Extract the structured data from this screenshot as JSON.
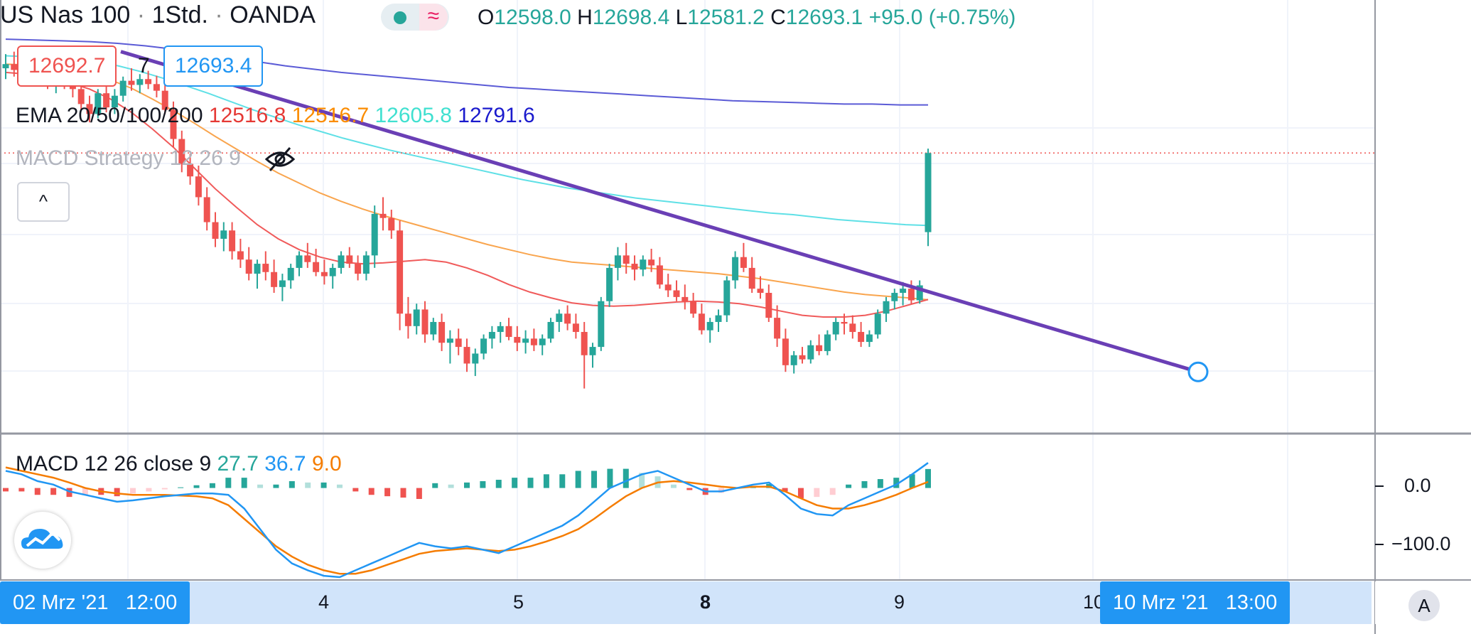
{
  "header": {
    "symbol": "US Nas 100",
    "sep1": "·",
    "interval": "1Std.",
    "sep2": "·",
    "broker": "OANDA",
    "wave_glyph": "≈",
    "ohlc": {
      "o_label": "O",
      "o": "12598.0",
      "h_label": "H",
      "h": "12698.4",
      "l_label": "L",
      "l": "12581.2",
      "c_label": "C",
      "c": "12693.1",
      "change": "+95.0 (+0.75%)"
    }
  },
  "quote": {
    "bid": "12692.7",
    "spread": "7",
    "ask": "12693.4"
  },
  "indicators": {
    "ema_label": "EMA 20/50/100/200",
    "ema20": "12516.8",
    "ema50": "12516.7",
    "ema100": "12605.8",
    "ema200": "12791.6",
    "macd_strategy_label": "MACD Strategy 12 26 9",
    "collapse_glyph": "^"
  },
  "macd_legend": {
    "label": "MACD 12 26 close 9",
    "hist": "27.7",
    "macd": "36.7",
    "signal": "9.0"
  },
  "time_axis": {
    "left_tag": "02 Mrz '21   12:00",
    "right_tag": "10 Mrz '21   13:00",
    "labels": [
      "4",
      "5",
      "8",
      "9",
      "10"
    ]
  },
  "macd_axis": {
    "labels": [
      "0.0",
      "−100.0"
    ]
  },
  "auto_button": "A",
  "colors": {
    "up": "#26a69a",
    "down": "#ef5350",
    "ema20": "#f05a5a",
    "ema50": "#f9a54e",
    "ema100": "#5fe0e6",
    "ema200": "#5b5bd6",
    "trendline": "#6a3fb5",
    "macd_line": "#2196f3",
    "signal_line": "#f57c00"
  },
  "chart_data": {
    "type": "candlestick",
    "symbol": "US Nas 100",
    "interval": "1h",
    "ohlc_last": {
      "open": 12598.0,
      "high": 12698.4,
      "low": 12581.2,
      "close": 12693.1
    },
    "price_range": [
      12390,
      12860
    ],
    "candles": [
      [
        12795,
        12812,
        12782,
        12800
      ],
      [
        12800,
        12815,
        12785,
        12793
      ],
      [
        12793,
        12808,
        12780,
        12802
      ],
      [
        12802,
        12820,
        12790,
        12809
      ],
      [
        12809,
        12818,
        12788,
        12795
      ],
      [
        12795,
        12805,
        12770,
        12778
      ],
      [
        12778,
        12796,
        12765,
        12788
      ],
      [
        12788,
        12800,
        12770,
        12780
      ],
      [
        12780,
        12790,
        12760,
        12770
      ],
      [
        12770,
        12782,
        12745,
        12752
      ],
      [
        12752,
        12762,
        12730,
        12740
      ],
      [
        12740,
        12770,
        12735,
        12765
      ],
      [
        12765,
        12775,
        12742,
        12748
      ],
      [
        12748,
        12770,
        12740,
        12762
      ],
      [
        12762,
        12785,
        12755,
        12780
      ],
      [
        12780,
        12795,
        12768,
        12775
      ],
      [
        12775,
        12788,
        12765,
        12782
      ],
      [
        12782,
        12792,
        12770,
        12776
      ],
      [
        12776,
        12786,
        12760,
        12768
      ],
      [
        12768,
        12780,
        12740,
        12745
      ],
      [
        12745,
        12755,
        12700,
        12710
      ],
      [
        12710,
        12720,
        12670,
        12680
      ],
      [
        12680,
        12692,
        12655,
        12665
      ],
      [
        12665,
        12678,
        12630,
        12640
      ],
      [
        12640,
        12652,
        12600,
        12610
      ],
      [
        12610,
        12622,
        12580,
        12590
      ],
      [
        12590,
        12610,
        12575,
        12600
      ],
      [
        12600,
        12610,
        12565,
        12575
      ],
      [
        12575,
        12590,
        12555,
        12565
      ],
      [
        12565,
        12580,
        12540,
        12548
      ],
      [
        12548,
        12565,
        12530,
        12560
      ],
      [
        12560,
        12575,
        12540,
        12550
      ],
      [
        12550,
        12565,
        12525,
        12532
      ],
      [
        12532,
        12548,
        12515,
        12540
      ],
      [
        12540,
        12560,
        12530,
        12555
      ],
      [
        12555,
        12575,
        12545,
        12570
      ],
      [
        12570,
        12585,
        12555,
        12562
      ],
      [
        12562,
        12578,
        12545,
        12550
      ],
      [
        12550,
        12565,
        12535,
        12545
      ],
      [
        12545,
        12560,
        12530,
        12555
      ],
      [
        12555,
        12575,
        12548,
        12570
      ],
      [
        12570,
        12580,
        12555,
        12560
      ],
      [
        12560,
        12570,
        12540,
        12548
      ],
      [
        12548,
        12575,
        12540,
        12570
      ],
      [
        12570,
        12630,
        12555,
        12620
      ],
      [
        12620,
        12640,
        12600,
        12615
      ],
      [
        12615,
        12625,
        12590,
        12600
      ],
      [
        12600,
        12612,
        12480,
        12500
      ],
      [
        12500,
        12520,
        12470,
        12485
      ],
      [
        12485,
        12512,
        12475,
        12505
      ],
      [
        12505,
        12515,
        12465,
        12475
      ],
      [
        12475,
        12495,
        12468,
        12490
      ],
      [
        12490,
        12500,
        12455,
        12465
      ],
      [
        12465,
        12480,
        12440,
        12470
      ],
      [
        12470,
        12482,
        12450,
        12460
      ],
      [
        12460,
        12470,
        12430,
        12440
      ],
      [
        12440,
        12458,
        12425,
        12452
      ],
      [
        12452,
        12475,
        12445,
        12470
      ],
      [
        12470,
        12485,
        12458,
        12478
      ],
      [
        12478,
        12490,
        12465,
        12485
      ],
      [
        12485,
        12495,
        12468,
        12472
      ],
      [
        12472,
        12485,
        12455,
        12465
      ],
      [
        12465,
        12480,
        12452,
        12470
      ],
      [
        12470,
        12482,
        12455,
        12462
      ],
      [
        12462,
        12475,
        12450,
        12470
      ],
      [
        12470,
        12495,
        12465,
        12490
      ],
      [
        12490,
        12505,
        12478,
        12500
      ],
      [
        12500,
        12510,
        12480,
        12488
      ],
      [
        12488,
        12500,
        12470,
        12478
      ],
      [
        12478,
        12490,
        12410,
        12450
      ],
      [
        12450,
        12465,
        12435,
        12460
      ],
      [
        12460,
        12520,
        12455,
        12515
      ],
      [
        12515,
        12560,
        12508,
        12555
      ],
      [
        12555,
        12580,
        12540,
        12570
      ],
      [
        12570,
        12585,
        12548,
        12560
      ],
      [
        12560,
        12570,
        12540,
        12553
      ],
      [
        12553,
        12570,
        12545,
        12565
      ],
      [
        12565,
        12578,
        12550,
        12558
      ],
      [
        12558,
        12568,
        12530,
        12535
      ],
      [
        12535,
        12548,
        12520,
        12528
      ],
      [
        12528,
        12540,
        12515,
        12520
      ],
      [
        12520,
        12535,
        12505,
        12515
      ],
      [
        12515,
        12525,
        12495,
        12500
      ],
      [
        12500,
        12512,
        12475,
        12480
      ],
      [
        12480,
        12495,
        12465,
        12490
      ],
      [
        12490,
        12505,
        12478,
        12498
      ],
      [
        12498,
        12545,
        12490,
        12540
      ],
      [
        12540,
        12575,
        12530,
        12568
      ],
      [
        12568,
        12585,
        12550,
        12555
      ],
      [
        12555,
        12568,
        12525,
        12530
      ],
      [
        12530,
        12545,
        12518,
        12525
      ],
      [
        12525,
        12535,
        12490,
        12495
      ],
      [
        12495,
        12510,
        12460,
        12470
      ],
      [
        12470,
        12482,
        12430,
        12438
      ],
      [
        12438,
        12455,
        12428,
        12450
      ],
      [
        12450,
        12460,
        12440,
        12445
      ],
      [
        12445,
        12468,
        12440,
        12462
      ],
      [
        12462,
        12475,
        12450,
        12455
      ],
      [
        12455,
        12480,
        12450,
        12475
      ],
      [
        12475,
        12495,
        12468,
        12490
      ],
      [
        12490,
        12500,
        12475,
        12488
      ],
      [
        12488,
        12498,
        12470,
        12478
      ],
      [
        12478,
        12490,
        12460,
        12466
      ],
      [
        12466,
        12480,
        12460,
        12475
      ],
      [
        12475,
        12505,
        12470,
        12500
      ],
      [
        12500,
        12520,
        12490,
        12515
      ],
      [
        12515,
        12530,
        12505,
        12525
      ],
      [
        12525,
        12538,
        12510,
        12530
      ],
      [
        12530,
        12540,
        12512,
        12516
      ],
      [
        12516,
        12540,
        12512,
        12534
      ],
      [
        12598,
        12698.4,
        12581.2,
        12693.1
      ]
    ],
    "ema20": [
      12790,
      12788,
      12784,
      12778,
      12770,
      12758,
      12742,
      12722,
      12700,
      12675,
      12650,
      12628,
      12607,
      12590,
      12577,
      12568,
      12562,
      12560,
      12561,
      12563,
      12565,
      12562,
      12555,
      12546,
      12535,
      12526,
      12519,
      12513,
      12510,
      12509,
      12510,
      12512,
      12514,
      12515,
      12514,
      12512,
      12508,
      12503,
      12498,
      12496,
      12496,
      12498,
      12503,
      12510,
      12517
    ],
    "ema50": [
      12800,
      12799,
      12797,
      12794,
      12789,
      12781,
      12771,
      12758,
      12744,
      12729,
      12713,
      12698,
      12683,
      12669,
      12657,
      12645,
      12635,
      12626,
      12618,
      12611,
      12604,
      12597,
      12590,
      12583,
      12577,
      12571,
      12566,
      12562,
      12560,
      12558,
      12556,
      12554,
      12552,
      12550,
      12548,
      12545,
      12542,
      12538,
      12534,
      12530,
      12526,
      12523,
      12521,
      12519,
      12516.7
    ],
    "ema100": [
      12810,
      12809,
      12808,
      12806,
      12803,
      12798,
      12791,
      12783,
      12774,
      12765,
      12755,
      12745,
      12736,
      12727,
      12719,
      12711,
      12704,
      12697,
      12691,
      12685,
      12679,
      12673,
      12667,
      12661,
      12656,
      12651,
      12647,
      12643,
      12639,
      12636,
      12633,
      12630,
      12627,
      12624,
      12621,
      12619,
      12616,
      12613,
      12611,
      12609,
      12607,
      12606,
      12605.8
    ],
    "ema200": [
      12830,
      12829,
      12828,
      12827,
      12825,
      12822,
      12818,
      12813,
      12808,
      12803,
      12798,
      12794,
      12790,
      12787,
      12784,
      12781,
      12778,
      12775,
      12772,
      12770,
      12768,
      12766,
      12764,
      12762,
      12760,
      12758,
      12756,
      12755,
      12754,
      12753,
      12752,
      12752,
      12751,
      12751,
      12791.6
    ],
    "trendline": {
      "from": {
        "time": "02 Mrz '21 12:00",
        "price": 12815
      },
      "to": {
        "time": "10 Mrz '21 13:00",
        "price": 12430
      }
    },
    "current_price_line": 12693.1,
    "macd": {
      "params": "12 26 close 9",
      "hist_last": 27.7,
      "macd_last": 36.7,
      "signal_last": 9.0,
      "range": [
        -130,
        40
      ],
      "macd_line": [
        25,
        20,
        10,
        5,
        -5,
        -10,
        -15,
        -20,
        -18,
        -15,
        -12,
        -10,
        -8,
        -8,
        -10,
        -30,
        -60,
        -90,
        -110,
        -120,
        -128,
        -130,
        -120,
        -110,
        -100,
        -90,
        -80,
        -85,
        -88,
        -85,
        -90,
        -95,
        -85,
        -75,
        -65,
        -55,
        -40,
        -20,
        0,
        10,
        20,
        25,
        15,
        5,
        -5,
        -5,
        0,
        5,
        8,
        -10,
        -30,
        -38,
        -40,
        -25,
        -15,
        -5,
        5,
        20,
        36.7
      ],
      "signal_line": [
        30,
        25,
        20,
        15,
        8,
        0,
        -5,
        -8,
        -10,
        -10,
        -10,
        -11,
        -12,
        -15,
        -25,
        -45,
        -65,
        -85,
        -100,
        -112,
        -120,
        -125,
        -125,
        -120,
        -112,
        -104,
        -96,
        -92,
        -90,
        -88,
        -90,
        -92,
        -90,
        -85,
        -78,
        -70,
        -60,
        -45,
        -28,
        -12,
        0,
        8,
        10,
        8,
        5,
        2,
        0,
        2,
        2,
        -5,
        -15,
        -25,
        -30,
        -30,
        -25,
        -18,
        -10,
        0,
        9.0
      ],
      "histogram": [
        -5,
        -5,
        -10,
        -10,
        -13,
        -10,
        -10,
        -12,
        -8,
        -5,
        -2,
        1,
        4,
        7,
        15,
        15,
        5,
        5,
        10,
        8,
        8,
        5,
        -5,
        -10,
        -12,
        -14,
        -16,
        7,
        5,
        8,
        10,
        12,
        15,
        15,
        20,
        20,
        25,
        25,
        28,
        28,
        22,
        17,
        5,
        -3,
        -10,
        -7,
        0,
        3,
        6,
        -5,
        -15,
        -13,
        -10,
        5,
        10,
        13,
        15,
        20,
        27.7
      ]
    }
  }
}
